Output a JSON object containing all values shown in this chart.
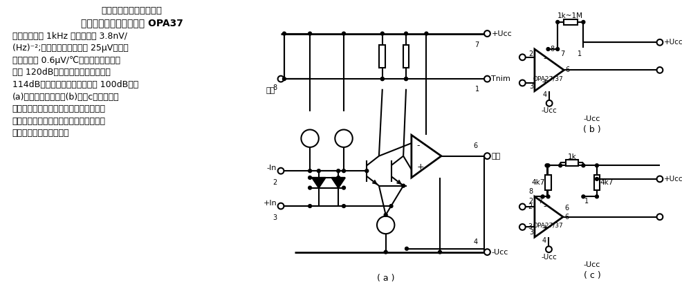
{
  "bg_color": "#ffffff",
  "title_partial": "超低噪声精密运算放大器",
  "title_full": "超低噪声精密运算放大器 OPA37",
  "text_lines": [
    "特点：低噪声 1kHz 时，不大于 3.8nV/",
    "(Hz)⁻²;低失调电压，不大于 25μV；低漂",
    "移，不大于 0.6μV/℃；高电压增益，不",
    "小于 120dB；高共模抑制比，不小于",
    "114dB；高电源抑制比，不小于 100dB。图",
    "(a)为简化原理图，图(b)及（c）为两种调",
    "零方法。应用：专业级音响设备、精密仪",
    "器放大器、传感器放大器、数据采集、测",
    "试设备、高能射线仪器。"
  ],
  "label_a": "( a )",
  "label_b": "( b )",
  "label_c": "( c )"
}
